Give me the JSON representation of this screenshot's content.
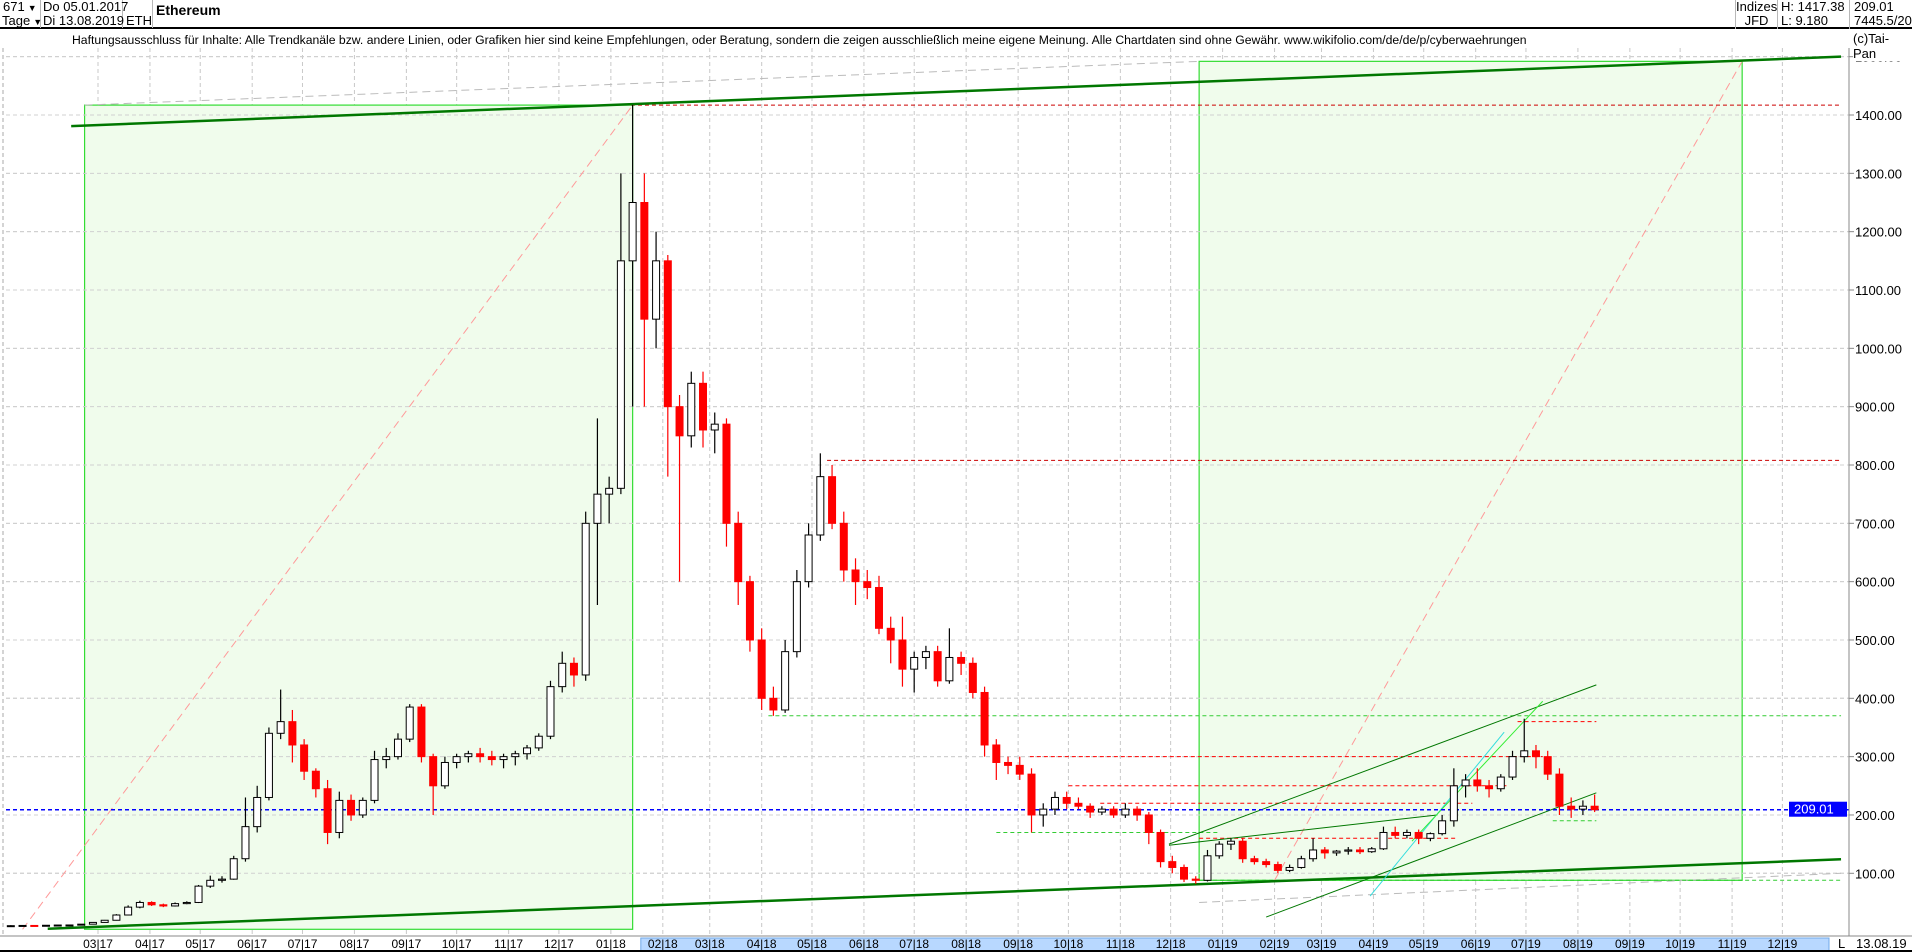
{
  "header": {
    "count": "671",
    "period": "Tage",
    "date_from": "Do 05.01.2017",
    "date_to": "Di 13.08.2019",
    "symbol": "ETH",
    "title": "Ethereum",
    "group": "Indizes",
    "source": "JFD",
    "high": "H: 1417.38",
    "low": "L: 9.180",
    "last": "209.01",
    "extra": "7445.5/20",
    "copyright": "(c)Tai-Pan"
  },
  "disclaimer": "Haftungsausschluss für Inhalte: Alle Trendkanäle bzw. andere Linien, oder Grafiken hier sind keine Empfehlungen, oder Beratung, sondern die zeigen ausschließlich meine eigene Meinung. Alle Chartdaten sind ohne Gewähr.  www.wikifolio.com/de/de/p/cyberwaehrungen",
  "footer": {
    "mode": "L",
    "date": "13.08.19"
  },
  "colors": {
    "up": "#000000",
    "down": "#ff0000",
    "box_fill": "#f0fcec",
    "box_stroke": "#33dd33",
    "trend": "#007700",
    "last_line": "#0000ff",
    "axis_highlight": "#b8d8ff"
  },
  "chart_data": {
    "type": "candlestick",
    "title": "Ethereum",
    "ylim": [
      0,
      1550
    ],
    "y_ticks": [
      100,
      200,
      300,
      400,
      500,
      600,
      700,
      800,
      900,
      1000,
      1100,
      1200,
      1300,
      1400,
      1500
    ],
    "y_tick_labels": [
      "100.00",
      "200.00",
      "300.00",
      "400.00",
      "500.00",
      "600.00",
      "700.00",
      "800.00",
      "900.00",
      "1000.00",
      "1100.00",
      "1200.00",
      "1300.00",
      "1400.00",
      "1500.00"
    ],
    "x_ticks": [
      "2017-03-01",
      "2017-04-01",
      "2017-05-01",
      "2017-06-01",
      "2017-07-01",
      "2017-08-01",
      "2017-09-01",
      "2017-10-01",
      "2017-11-01",
      "2017-12-01",
      "2018-01-01",
      "2018-02-01",
      "2018-03-01",
      "2018-04-01",
      "2018-05-01",
      "2018-06-01",
      "2018-07-01",
      "2018-08-01",
      "2018-09-01",
      "2018-10-01",
      "2018-11-01",
      "2018-12-01",
      "2019-01-01",
      "2019-02-01",
      "2019-03-01",
      "2019-04-01",
      "2019-05-01",
      "2019-06-01",
      "2019-07-01",
      "2019-08-01",
      "2019-09-01",
      "2019-10-01",
      "2019-11-01",
      "2019-12-01"
    ],
    "x_tick_labels": [
      "03|17",
      "04|17",
      "05|17",
      "06|17",
      "07|17",
      "08|17",
      "09|17",
      "10|17",
      "11|17",
      "12|17",
      "01|18",
      "02|18",
      "03|18",
      "04|18",
      "05|18",
      "06|18",
      "07|18",
      "08|18",
      "09|18",
      "10|18",
      "11|18",
      "12|18",
      "01|19",
      "02|19",
      "03|19",
      "04|19",
      "05|19",
      "06|19",
      "07|19",
      "08|19",
      "09|19",
      "10|19",
      "11|19",
      "12|19"
    ],
    "grid": true,
    "last_value": 209.01,
    "last_value_label": "209.01",
    "candles": [
      [
        "2017-01-05",
        10,
        11,
        9.5,
        10.2
      ],
      [
        "2017-01-12",
        10.2,
        10.8,
        9.6,
        10.6
      ],
      [
        "2017-01-19",
        10.6,
        11,
        10.3,
        10.5
      ],
      [
        "2017-01-26",
        10.5,
        11.2,
        10.4,
        10.9
      ],
      [
        "2017-02-02",
        10.9,
        11.5,
        10.8,
        11.3
      ],
      [
        "2017-02-09",
        11.3,
        11.6,
        10.9,
        11.4
      ],
      [
        "2017-02-16",
        11.4,
        13,
        11.3,
        12.8
      ],
      [
        "2017-02-23",
        12.8,
        16,
        12.7,
        15.8
      ],
      [
        "2017-03-02",
        15.8,
        20,
        15.5,
        19.5
      ],
      [
        "2017-03-09",
        19.5,
        30,
        19,
        28.5
      ],
      [
        "2017-03-16",
        28.5,
        45,
        28,
        42
      ],
      [
        "2017-03-23",
        42,
        53,
        40,
        50
      ],
      [
        "2017-03-30",
        50,
        52,
        44,
        46
      ],
      [
        "2017-04-06",
        46,
        48,
        42,
        44
      ],
      [
        "2017-04-13",
        44,
        50,
        43,
        48
      ],
      [
        "2017-04-20",
        48,
        52,
        47,
        50
      ],
      [
        "2017-04-27",
        50,
        80,
        49,
        78
      ],
      [
        "2017-05-04",
        78,
        96,
        75,
        88
      ],
      [
        "2017-05-11",
        88,
        95,
        84,
        90
      ],
      [
        "2017-05-18",
        90,
        130,
        89,
        125
      ],
      [
        "2017-05-25",
        125,
        230,
        120,
        180
      ],
      [
        "2017-06-01",
        180,
        250,
        170,
        230
      ],
      [
        "2017-06-08",
        230,
        350,
        225,
        340
      ],
      [
        "2017-06-15",
        340,
        415,
        330,
        360
      ],
      [
        "2017-06-22",
        360,
        380,
        290,
        320
      ],
      [
        "2017-06-29",
        320,
        330,
        260,
        275
      ],
      [
        "2017-07-06",
        275,
        280,
        230,
        245
      ],
      [
        "2017-07-13",
        245,
        260,
        150,
        170
      ],
      [
        "2017-07-20",
        170,
        240,
        160,
        225
      ],
      [
        "2017-07-27",
        225,
        235,
        190,
        200
      ],
      [
        "2017-08-03",
        200,
        230,
        195,
        225
      ],
      [
        "2017-08-10",
        225,
        310,
        220,
        295
      ],
      [
        "2017-08-17",
        295,
        315,
        280,
        300
      ],
      [
        "2017-08-24",
        300,
        340,
        295,
        330
      ],
      [
        "2017-08-31",
        330,
        390,
        325,
        385
      ],
      [
        "2017-09-07",
        385,
        390,
        290,
        300
      ],
      [
        "2017-09-14",
        300,
        305,
        200,
        250
      ],
      [
        "2017-09-21",
        250,
        300,
        245,
        290
      ],
      [
        "2017-09-28",
        290,
        305,
        280,
        300
      ],
      [
        "2017-10-05",
        300,
        310,
        290,
        305
      ],
      [
        "2017-10-12",
        305,
        315,
        290,
        300
      ],
      [
        "2017-10-19",
        300,
        310,
        285,
        295
      ],
      [
        "2017-10-26",
        295,
        305,
        280,
        300
      ],
      [
        "2017-11-02",
        300,
        310,
        285,
        305
      ],
      [
        "2017-11-09",
        305,
        320,
        295,
        315
      ],
      [
        "2017-11-16",
        315,
        340,
        310,
        335
      ],
      [
        "2017-11-23",
        335,
        430,
        330,
        420
      ],
      [
        "2017-11-30",
        420,
        480,
        410,
        460
      ],
      [
        "2017-12-07",
        460,
        470,
        420,
        440
      ],
      [
        "2017-12-14",
        440,
        720,
        430,
        700
      ],
      [
        "2017-12-21",
        700,
        880,
        560,
        750
      ],
      [
        "2017-12-28",
        750,
        780,
        700,
        760
      ],
      [
        "2018-01-04",
        760,
        1300,
        750,
        1150
      ],
      [
        "2018-01-11",
        1150,
        1417.38,
        900,
        1250
      ],
      [
        "2018-01-18",
        1250,
        1300,
        900,
        1050
      ],
      [
        "2018-01-25",
        1050,
        1200,
        1000,
        1150
      ],
      [
        "2018-02-01",
        1150,
        1160,
        780,
        900
      ],
      [
        "2018-02-08",
        900,
        920,
        600,
        850
      ],
      [
        "2018-02-15",
        850,
        960,
        830,
        940
      ],
      [
        "2018-02-22",
        940,
        960,
        830,
        860
      ],
      [
        "2018-03-01",
        860,
        890,
        820,
        870
      ],
      [
        "2018-03-08",
        870,
        880,
        660,
        700
      ],
      [
        "2018-03-15",
        700,
        720,
        560,
        600
      ],
      [
        "2018-03-22",
        600,
        610,
        480,
        500
      ],
      [
        "2018-03-29",
        500,
        520,
        380,
        400
      ],
      [
        "2018-04-05",
        400,
        420,
        370,
        380
      ],
      [
        "2018-04-12",
        380,
        500,
        375,
        480
      ],
      [
        "2018-04-19",
        480,
        620,
        470,
        600
      ],
      [
        "2018-04-26",
        600,
        700,
        590,
        680
      ],
      [
        "2018-05-03",
        680,
        820,
        670,
        780
      ],
      [
        "2018-05-10",
        780,
        800,
        690,
        700
      ],
      [
        "2018-05-17",
        700,
        720,
        600,
        620
      ],
      [
        "2018-05-24",
        620,
        640,
        560,
        600
      ],
      [
        "2018-05-31",
        600,
        620,
        570,
        590
      ],
      [
        "2018-06-07",
        590,
        610,
        510,
        520
      ],
      [
        "2018-06-14",
        520,
        540,
        460,
        500
      ],
      [
        "2018-06-21",
        500,
        540,
        420,
        450
      ],
      [
        "2018-06-28",
        450,
        480,
        410,
        470
      ],
      [
        "2018-07-05",
        470,
        490,
        450,
        480
      ],
      [
        "2018-07-12",
        480,
        490,
        420,
        430
      ],
      [
        "2018-07-19",
        430,
        520,
        425,
        470
      ],
      [
        "2018-07-26",
        470,
        480,
        440,
        460
      ],
      [
        "2018-08-02",
        460,
        470,
        400,
        410
      ],
      [
        "2018-08-09",
        410,
        420,
        300,
        320
      ],
      [
        "2018-08-16",
        320,
        330,
        260,
        290
      ],
      [
        "2018-08-23",
        290,
        300,
        270,
        285
      ],
      [
        "2018-08-30",
        285,
        300,
        260,
        270
      ],
      [
        "2018-09-06",
        270,
        280,
        170,
        200
      ],
      [
        "2018-09-13",
        200,
        220,
        180,
        210
      ],
      [
        "2018-09-20",
        210,
        240,
        200,
        230
      ],
      [
        "2018-09-27",
        230,
        240,
        210,
        220
      ],
      [
        "2018-10-04",
        220,
        230,
        210,
        215
      ],
      [
        "2018-10-11",
        215,
        220,
        195,
        205
      ],
      [
        "2018-10-18",
        205,
        215,
        200,
        210
      ],
      [
        "2018-10-25",
        210,
        215,
        195,
        200
      ],
      [
        "2018-11-01",
        200,
        220,
        195,
        210
      ],
      [
        "2018-11-08",
        210,
        215,
        190,
        200
      ],
      [
        "2018-11-15",
        200,
        205,
        150,
        170
      ],
      [
        "2018-11-22",
        170,
        175,
        110,
        120
      ],
      [
        "2018-11-29",
        120,
        130,
        100,
        110
      ],
      [
        "2018-12-06",
        110,
        115,
        85,
        90
      ],
      [
        "2018-12-13",
        90,
        95,
        82,
        88
      ],
      [
        "2018-12-20",
        88,
        140,
        86,
        130
      ],
      [
        "2018-12-27",
        130,
        155,
        125,
        150
      ],
      [
        "2019-01-03",
        150,
        160,
        140,
        155
      ],
      [
        "2019-01-10",
        155,
        160,
        118,
        125
      ],
      [
        "2019-01-17",
        125,
        130,
        115,
        120
      ],
      [
        "2019-01-24",
        120,
        125,
        110,
        115
      ],
      [
        "2019-01-31",
        115,
        120,
        100,
        105
      ],
      [
        "2019-02-07",
        105,
        115,
        102,
        110
      ],
      [
        "2019-02-14",
        110,
        130,
        108,
        125
      ],
      [
        "2019-02-21",
        125,
        160,
        120,
        140
      ],
      [
        "2019-02-28",
        140,
        145,
        125,
        135
      ],
      [
        "2019-03-07",
        135,
        140,
        130,
        138
      ],
      [
        "2019-03-14",
        138,
        145,
        132,
        140
      ],
      [
        "2019-03-21",
        140,
        145,
        133,
        137
      ],
      [
        "2019-03-28",
        137,
        145,
        135,
        142
      ],
      [
        "2019-04-04",
        142,
        180,
        140,
        170
      ],
      [
        "2019-04-11",
        170,
        180,
        160,
        165
      ],
      [
        "2019-04-18",
        165,
        175,
        160,
        170
      ],
      [
        "2019-04-25",
        170,
        175,
        150,
        160
      ],
      [
        "2019-05-02",
        160,
        170,
        155,
        168
      ],
      [
        "2019-05-09",
        168,
        200,
        165,
        190
      ],
      [
        "2019-05-16",
        190,
        280,
        180,
        250
      ],
      [
        "2019-05-23",
        250,
        270,
        230,
        260
      ],
      [
        "2019-05-30",
        260,
        280,
        240,
        250
      ],
      [
        "2019-06-06",
        250,
        260,
        230,
        245
      ],
      [
        "2019-06-13",
        245,
        270,
        240,
        265
      ],
      [
        "2019-06-20",
        265,
        310,
        260,
        300
      ],
      [
        "2019-06-27",
        300,
        365,
        290,
        310
      ],
      [
        "2019-07-04",
        310,
        320,
        280,
        300
      ],
      [
        "2019-07-11",
        300,
        310,
        260,
        270
      ],
      [
        "2019-07-18",
        270,
        280,
        200,
        215
      ],
      [
        "2019-07-25",
        215,
        230,
        195,
        210
      ],
      [
        "2019-08-01",
        210,
        225,
        200,
        215
      ],
      [
        "2019-08-08",
        215,
        235,
        205,
        209.01
      ]
    ],
    "annotations": {
      "boxes": [
        {
          "from": [
            "2017-02-21",
            4
          ],
          "to": [
            "2018-01-14",
            1417
          ]
        },
        {
          "from": [
            "2018-12-18",
            88
          ],
          "to": [
            "2019-11-07",
            1492
          ]
        }
      ],
      "trendlines": [
        {
          "from": [
            "2017-02-13",
            1381
          ],
          "to": [
            "2020-01-05",
            1500
          ],
          "color": "#007700",
          "width": 2.5
        },
        {
          "from": [
            "2017-01-30",
            5
          ],
          "to": [
            "2020-01-05",
            124
          ],
          "color": "#007700",
          "width": 2.5
        },
        {
          "from": [
            "2018-11-30",
            150
          ],
          "to": [
            "2019-08-12",
            423
          ],
          "color": "#007700",
          "width": 1
        },
        {
          "from": [
            "2019-01-27",
            25
          ],
          "to": [
            "2019-08-12",
            238
          ],
          "color": "#007700",
          "width": 1
        },
        {
          "from": [
            "2018-11-30",
            148
          ],
          "to": [
            "2019-05-09",
            200
          ],
          "color": "#007700",
          "width": 1
        },
        {
          "from": [
            "2019-03-30",
            61
          ],
          "to": [
            "2019-06-18",
            342
          ],
          "color": "#33dddd",
          "width": 1
        },
        {
          "from": [
            "2019-04-24",
            155
          ],
          "to": [
            "2019-07-11",
            395
          ],
          "color": "#33ee33",
          "width": 1
        }
      ],
      "diagonals": [
        {
          "from": [
            "2017-01-15",
            4
          ],
          "to": [
            "2018-01-14",
            1417
          ],
          "color": "#ff9999"
        },
        {
          "from": [
            "2019-02-01",
            88
          ],
          "to": [
            "2019-11-07",
            1492
          ],
          "color": "#ff9999"
        },
        {
          "from": [
            "2017-02-21",
            1417
          ],
          "to": [
            "2018-12-18",
            1492
          ],
          "color": "#bbbbbb"
        },
        {
          "from": [
            "2018-12-18",
            50
          ],
          "to": [
            "2020-01-05",
            100
          ],
          "color": "#bbbbbb"
        }
      ],
      "hlines": [
        {
          "value": 1417,
          "from": "2018-01-13",
          "to": "2020-01-05",
          "color": "#cc0000"
        },
        {
          "value": 808,
          "from": "2018-05-10",
          "to": "2020-01-05",
          "color": "#cc0000"
        },
        {
          "value": 370,
          "from": "2018-04-05",
          "to": "2020-01-05",
          "color": "#33cc33"
        },
        {
          "value": 360,
          "from": "2019-06-26",
          "to": "2019-08-12",
          "color": "#ff0000"
        },
        {
          "value": 300,
          "from": "2018-09-08",
          "to": "2019-07-11",
          "color": "#ff0000"
        },
        {
          "value": 250,
          "from": "2018-10-01",
          "to": "2019-06-20",
          "color": "#ff0000"
        },
        {
          "value": 220,
          "from": "2018-10-20",
          "to": "2019-05-30",
          "color": "#ff0000"
        },
        {
          "value": 170,
          "from": "2018-08-19",
          "to": "2018-12-29",
          "color": "#33cc33"
        },
        {
          "value": 160,
          "from": "2018-12-18",
          "to": "2019-05-20",
          "color": "#ff0000"
        },
        {
          "value": 190,
          "from": "2019-07-17",
          "to": "2019-08-12",
          "color": "#33cc33"
        },
        {
          "value": 88,
          "from": "2018-12-18",
          "to": "2020-01-05",
          "color": "#33cc33"
        }
      ]
    }
  }
}
